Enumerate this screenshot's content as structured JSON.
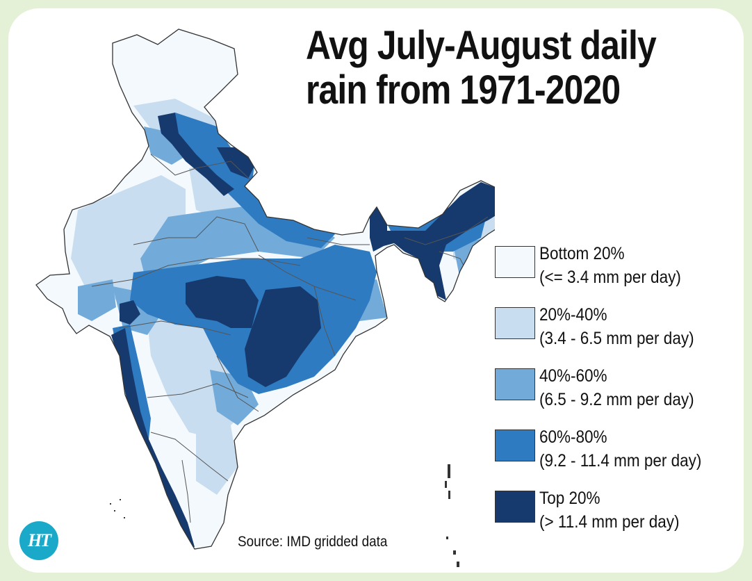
{
  "title": {
    "line1": "Avg July-August daily",
    "line2": "rain from 1971-2020"
  },
  "legend": [
    {
      "label": "Bottom 20%",
      "range": "(<= 3.4 mm per day)",
      "color": "#f4f9fe"
    },
    {
      "label": "20%-40%",
      "range": "(3.4 - 6.5 mm per day)",
      "color": "#c9ddf0"
    },
    {
      "label": "40%-60%",
      "range": "(6.5 - 9.2 mm per day)",
      "color": "#72abd9"
    },
    {
      "label": "60%-80%",
      "range": "(9.2 - 11.4 mm per day)",
      "color": "#2f7bc1"
    },
    {
      "label": "Top 20%",
      "range": "(> 11.4 mm per day)",
      "color": "#163a6e"
    }
  ],
  "source": "Source: IMD gridded data",
  "logo": {
    "text": "HT",
    "color": "#1aa9c9"
  },
  "background_color": "#e4f1d6"
}
